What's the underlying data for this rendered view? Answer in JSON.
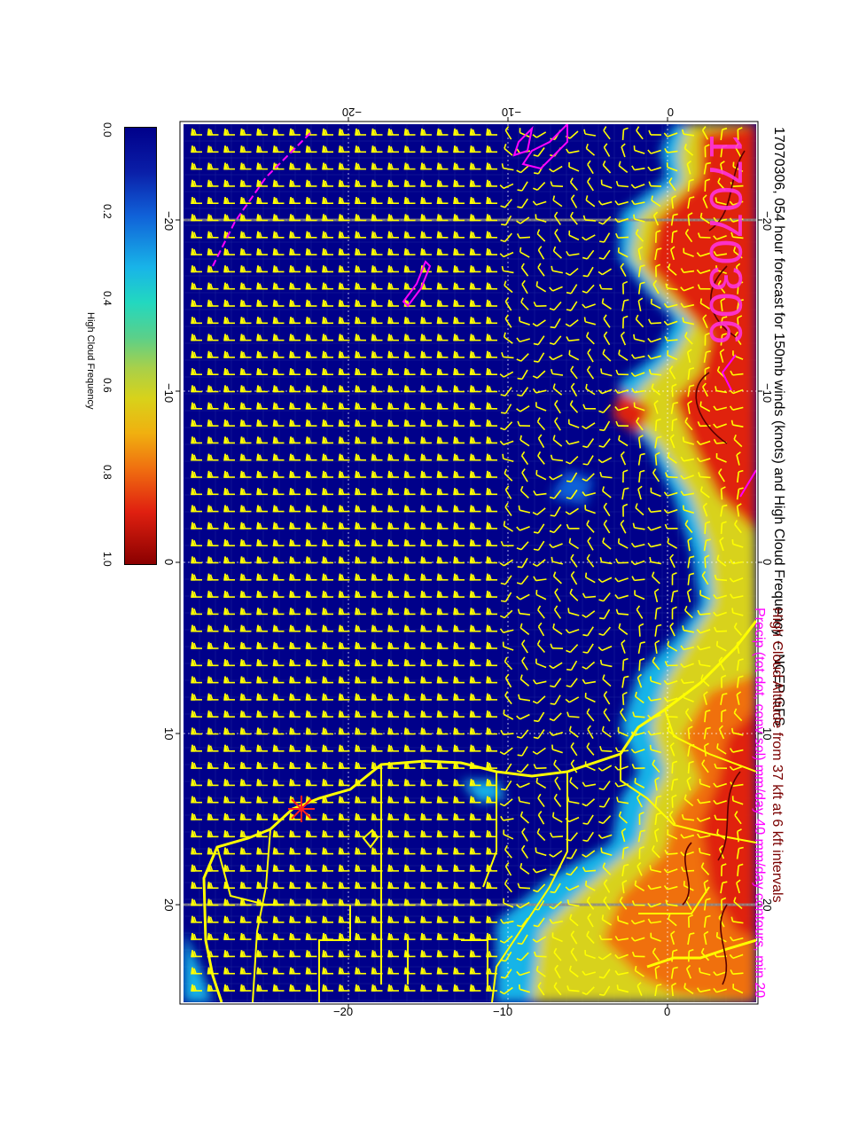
{
  "title": "17070306, 054 hour forecast for 150mb winds (knots) and High Cloud Frequency -- NCEP GFS",
  "stamp": "17070306",
  "captions": {
    "line1": "High Cloud Altitude from 37 kft at 6 kft intervals",
    "line2": "Precip (tot dot, conv sol) mm/day 40 mm/day contours, min 20"
  },
  "colorbar": {
    "title": "High Cloud Frequency",
    "labels": [
      "0.0",
      "0.2",
      "0.4",
      "0.6",
      "0.8",
      "1.0"
    ]
  },
  "axes": {
    "top_labels": [
      "−20",
      "−10",
      "0"
    ],
    "bottom_labels": [
      "−20",
      "−10",
      "0"
    ],
    "left_labels": [
      "−20",
      "−10",
      "0",
      "10",
      "20"
    ],
    "right_labels": [
      "−20",
      "−10",
      "0",
      "10",
      "20"
    ]
  },
  "colors": {
    "background": "#00008a",
    "barbs": "#ffff00",
    "coastline": "#ffff00",
    "precip_contours": "#ff00ff",
    "cloud_high": "#c00000",
    "cloud_mid": "#f0c010",
    "cloud_low": "#18b4e8"
  },
  "marker": "red-star-icon"
}
